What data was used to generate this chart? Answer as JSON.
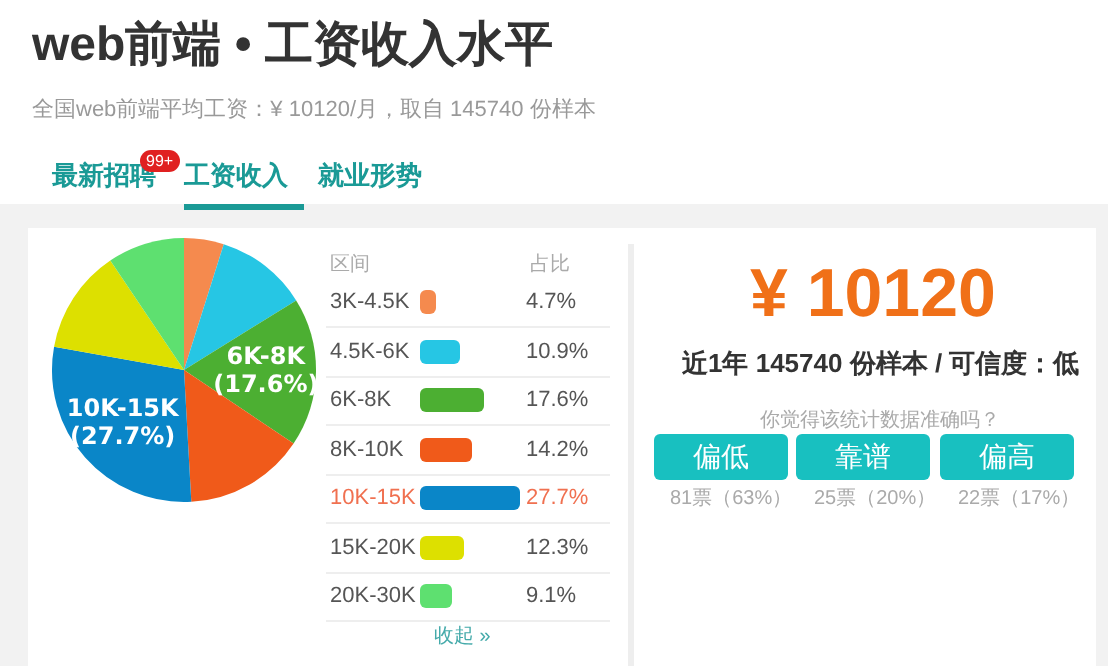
{
  "chart_data": {
    "type": "pie",
    "title": "web前端 • 工资收入水平",
    "subtitle": "全国web前端平均工资：¥ 10120/月，取自 145740 份样本",
    "categories": [
      "3K-4.5K",
      "4.5K-6K",
      "6K-8K",
      "8K-10K",
      "10K-15K",
      "15K-20K",
      "20K-30K"
    ],
    "values": [
      4.7,
      10.9,
      17.6,
      14.2,
      27.7,
      12.3,
      9.1
    ],
    "value_labels": [
      "4.7%",
      "10.9%",
      "17.6%",
      "14.2%",
      "27.7%",
      "12.3%",
      "9.1%"
    ],
    "colors": [
      "#f58a4e",
      "#26c6e4",
      "#4caf32",
      "#f05a1a",
      "#0a86c8",
      "#dde000",
      "#5ee070"
    ],
    "legend": "right",
    "annotations": [
      {
        "text": "6K-8K",
        "x": "6K-8K"
      },
      {
        "text": "(17.6%)",
        "x": "6K-8K"
      },
      {
        "text": "10K-15K",
        "x": "10K-15K"
      },
      {
        "text": "(27.7%)",
        "x": "10K-15K"
      },
      "最新招聘",
      "99+",
      "工资收入",
      "就业形势",
      "区间",
      "占比",
      "收起 »",
      "¥ 10120",
      "近1年 145740 份样本 / 可信度：低",
      "你觉得该统计数据准确吗？",
      "偏低",
      "靠谱",
      "偏高",
      "81票（63%）",
      "25票（20%）",
      "22票（17%）"
    ]
  }
}
